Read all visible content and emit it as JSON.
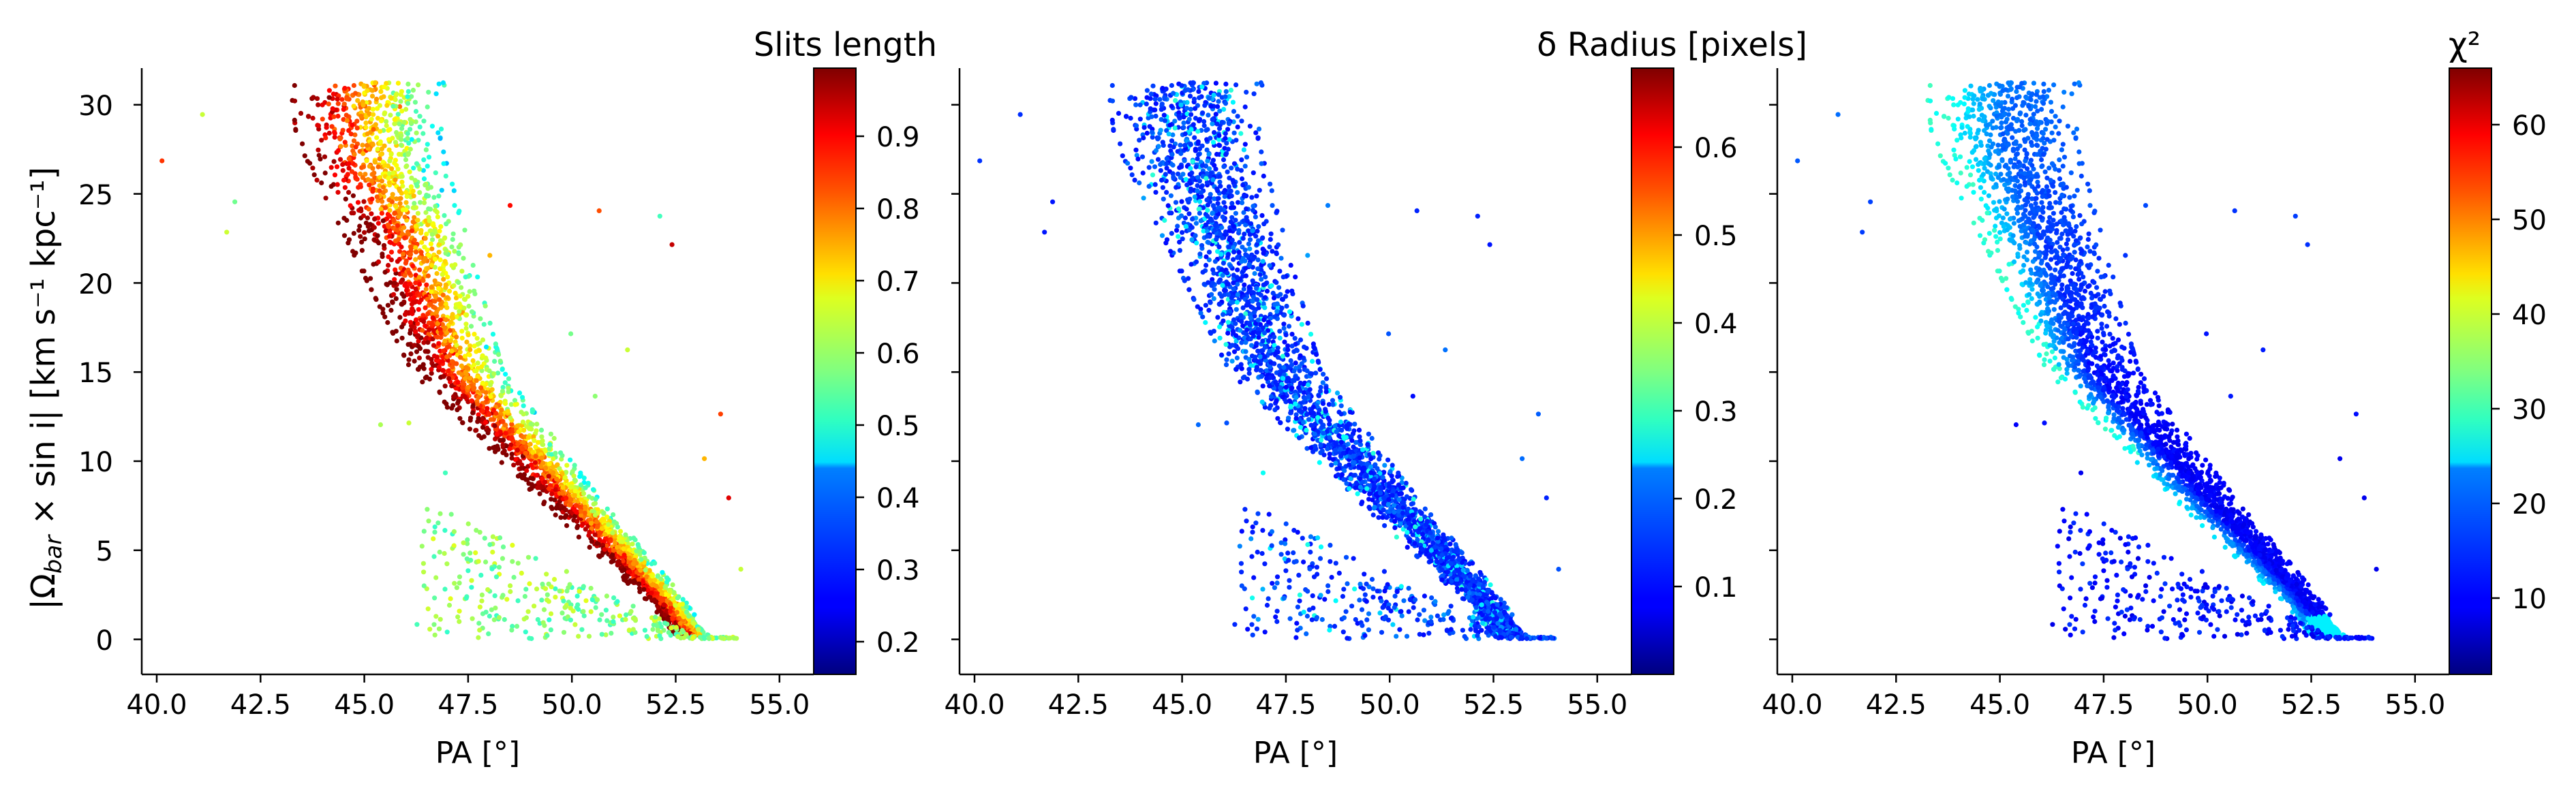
{
  "figure": {
    "ylabel": "|Ω",
    "ylabel_sub": "bar",
    "ylabel_rest": " × sin i|   [km s⁻¹ kpc⁻¹]"
  },
  "chart_data": [
    {
      "type": "scatter",
      "panel": 1,
      "title": "Slits length",
      "xlabel": "PA [°]",
      "xlim": [
        39.7,
        56.3
      ],
      "ylim": [
        -2,
        32
      ],
      "xticks": [
        40.0,
        42.5,
        45.0,
        47.5,
        50.0,
        52.5,
        55.0
      ],
      "xtick_labels": [
        "40.0",
        "42.5",
        "45.0",
        "47.5",
        "50.0",
        "52.5",
        "55.0"
      ],
      "yticks": [
        0,
        5,
        10,
        15,
        20,
        25,
        30
      ],
      "ytick_labels": [
        "0",
        "5",
        "10",
        "15",
        "20",
        "25",
        "30"
      ],
      "colormap": "jet",
      "colorbar": {
        "range": [
          0.15,
          0.99
        ],
        "ticks": [
          0.2,
          0.3,
          0.4,
          0.5,
          0.6,
          0.7,
          0.8,
          0.9
        ],
        "tick_labels": [
          "0.2",
          "0.3",
          "0.4",
          "0.5",
          "0.6",
          "0.7",
          "0.8",
          "0.9"
        ]
      },
      "points": {
        "count": 9000,
        "band_ridge_x": [
          45.3,
          47.5,
          50.0,
          52.5,
          53.3
        ],
        "band_ridge_y": [
          28,
          15,
          8.5,
          2.5,
          0.2
        ],
        "distribution": "dense band from (43.8, 31) to (53.3, 0.3); values high (red) along lower-left edge and low (green/yellow) on upper-right edge; sparse green cloud below band at PA 47-52, y 0-7"
      }
    },
    {
      "type": "scatter",
      "panel": 2,
      "title": "δ Radius [pixels]",
      "xlabel": "PA [°]",
      "xlim": [
        39.7,
        56.3
      ],
      "ylim": [
        -2,
        32
      ],
      "xticks": [
        40.0,
        42.5,
        45.0,
        47.5,
        50.0,
        52.5,
        55.0
      ],
      "xtick_labels": [
        "40.0",
        "42.5",
        "45.0",
        "47.5",
        "50.0",
        "52.5",
        "55.0"
      ],
      "colormap": "jet",
      "colorbar": {
        "range": [
          0.0,
          0.69
        ],
        "ticks": [
          0.1,
          0.2,
          0.3,
          0.4,
          0.5,
          0.6
        ],
        "tick_labels": [
          "0.1",
          "0.2",
          "0.3",
          "0.4",
          "0.5",
          "0.6"
        ]
      },
      "points": {
        "count": 9000,
        "distribution": "same band; mostly dark blue (0.02-0.15) with scattered cyan (0.2-0.3) points"
      }
    },
    {
      "type": "scatter",
      "panel": 3,
      "title": "χ²",
      "xlabel": "PA [°]",
      "xlim": [
        39.7,
        56.3
      ],
      "ylim": [
        -2,
        32
      ],
      "xticks": [
        40.0,
        42.5,
        45.0,
        47.5,
        50.0,
        52.5,
        55.0
      ],
      "xtick_labels": [
        "40.0",
        "42.5",
        "45.0",
        "47.5",
        "50.0",
        "52.5",
        "55.0"
      ],
      "colormap": "jet",
      "colorbar": {
        "range": [
          2,
          66
        ],
        "ticks": [
          10,
          20,
          30,
          40,
          50,
          60
        ],
        "tick_labels": [
          "10",
          "20",
          "30",
          "40",
          "50",
          "60"
        ]
      },
      "points": {
        "count": 9000,
        "distribution": "same band; dark blue (~5) along the ridge center, lighter blue/cyan (15-25) toward upper-left, cyan/green (25-35) at far upper-left edge"
      }
    }
  ]
}
